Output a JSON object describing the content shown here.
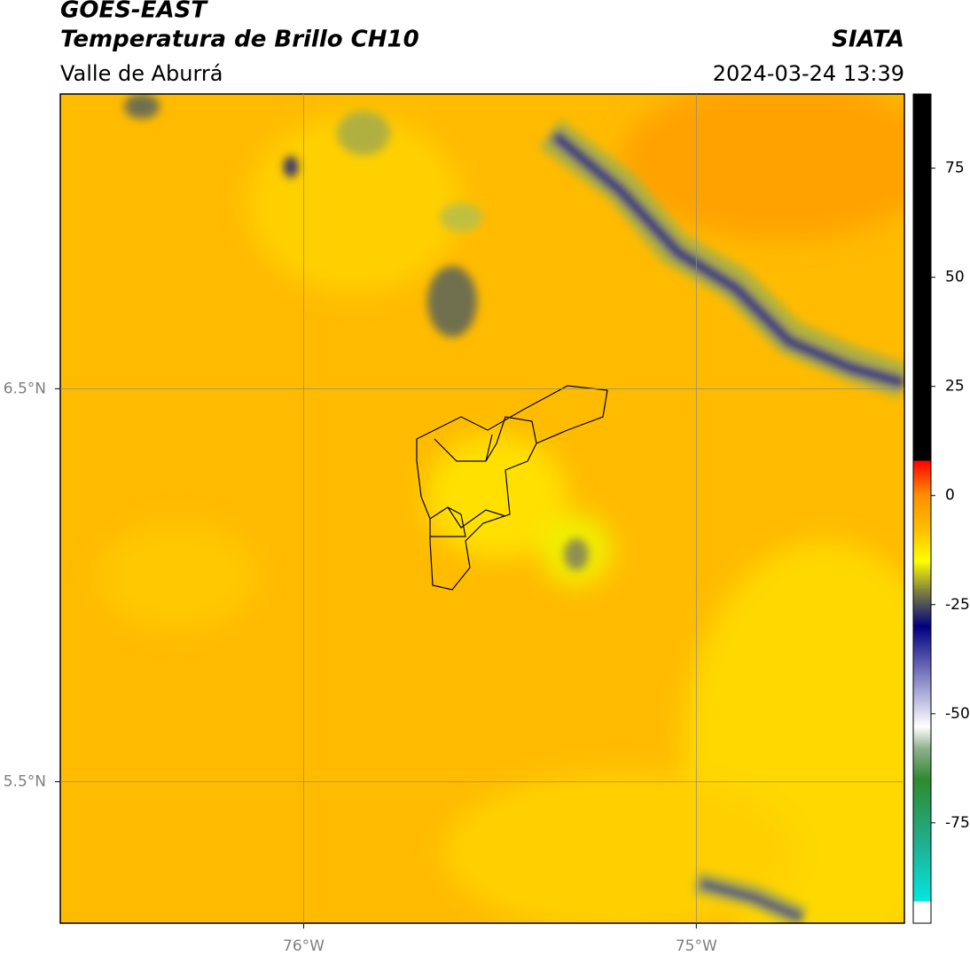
{
  "header": {
    "title_line1": "GOES-EAST",
    "title_line2": "Temperatura de Brillo CH10",
    "subtitle_left": "Valle de Aburrá",
    "title_right": "SIATA",
    "subtitle_right": "2024-03-24 13:39"
  },
  "map": {
    "xlim": [
      -76.62,
      -74.47
    ],
    "ylim": [
      5.14,
      7.25
    ],
    "xticks": [
      {
        "value": -76,
        "label": "76°W"
      },
      {
        "value": -75,
        "label": "75°W"
      }
    ],
    "yticks": [
      {
        "value": 6.5,
        "label": "6.5°N"
      },
      {
        "value": 5.5,
        "label": "5.5°N"
      }
    ],
    "grid": true
  },
  "colorbar": {
    "lim": [
      -98,
      92
    ],
    "ticks": [
      75,
      50,
      25,
      0,
      -25,
      -50,
      -75
    ],
    "stops": [
      {
        "value": -98,
        "color": "#ffffff"
      },
      {
        "value": -93,
        "color": "#ffffff"
      },
      {
        "value": -93,
        "color": "#00e8e0"
      },
      {
        "value": -80,
        "color": "#20b090"
      },
      {
        "value": -65,
        "color": "#2f8a2f"
      },
      {
        "value": -58,
        "color": "#8fb08f"
      },
      {
        "value": -53,
        "color": "#ffffff"
      },
      {
        "value": -45,
        "color": "#a8a8d8"
      },
      {
        "value": -30,
        "color": "#000080"
      },
      {
        "value": -22,
        "color": "#808040"
      },
      {
        "value": -15,
        "color": "#ffff00"
      },
      {
        "value": -8,
        "color": "#ffc000"
      },
      {
        "value": 0,
        "color": "#ff9000"
      },
      {
        "value": 8,
        "color": "#ff0000"
      },
      {
        "value": 8,
        "color": "#000000"
      },
      {
        "value": 92,
        "color": "#000000"
      }
    ]
  }
}
